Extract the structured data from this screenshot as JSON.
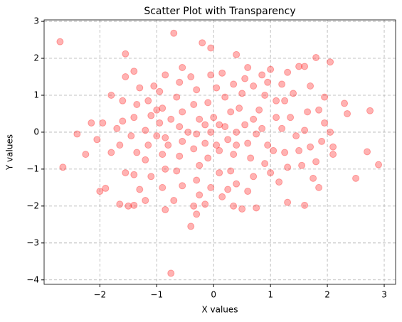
{
  "chart_data": {
    "type": "scatter",
    "title": "Scatter Plot with Transparency",
    "x_label": "X values",
    "y_label": "Y values",
    "color": "#ff0000",
    "alpha": 0.3,
    "grid": true,
    "xlim": [
      -2.98,
      3.2
    ],
    "ylim": [
      -4.12,
      3.04
    ],
    "xticks": [
      {
        "value": -2,
        "label": "−2"
      },
      {
        "value": -1,
        "label": "−1"
      },
      0,
      1,
      2,
      3
    ],
    "yticks": [
      {
        "value": -4,
        "label": "−4"
      },
      {
        "value": -3,
        "label": "−3"
      },
      {
        "value": -2,
        "label": "−2"
      },
      {
        "value": -1,
        "label": "−1"
      },
      0,
      1,
      2,
      3
    ],
    "x": [
      -2.7,
      -2.65,
      -0.7,
      -0.75,
      2.9,
      2.75,
      2.7,
      2.5,
      2.05,
      -0.4,
      1.8,
      -1.55,
      0.4,
      -0.2,
      -0.05,
      2.3,
      2.35,
      -2.4,
      -2.25,
      -2.15,
      -2.0,
      -1.9,
      -1.8,
      -1.8,
      1.3,
      1.6,
      0.35,
      0.5,
      0.75,
      -0.3,
      -0.35,
      -1.5,
      -1.65,
      -1.4,
      -1.2,
      -0.85,
      2.1,
      2.1,
      2.05,
      1.95,
      1.9,
      1.8,
      1.75,
      1.7,
      1.6,
      1.5,
      1.3,
      1.2,
      1.1,
      1.25,
      1.35,
      1.45,
      1.5,
      1.3,
      1.15,
      1.0,
      0.9,
      0.95,
      0.85,
      0.8,
      0.9,
      0.85,
      0.6,
      0.55,
      0.5,
      0.45,
      0.55,
      0.6,
      0.65,
      0.7,
      0.6,
      0.4,
      0.3,
      0.35,
      0.25,
      0.2,
      0.3,
      0.2,
      0.35,
      0.15,
      -0.05,
      0.05,
      -0.1,
      0.0,
      -0.05,
      0.05,
      -0.1,
      0.1,
      -0.05,
      0.15,
      -0.25,
      -0.3,
      -0.25,
      -0.35,
      -0.3,
      -0.25,
      -0.35,
      -0.3,
      -0.4,
      -0.55,
      -0.6,
      -0.65,
      -0.55,
      -0.6,
      -0.55,
      -0.6,
      -0.65,
      -0.55,
      -0.7,
      -0.9,
      -0.85,
      -0.9,
      -0.85,
      -0.95,
      -0.9,
      -0.95,
      -0.85,
      -1.05,
      -1.15,
      -1.1,
      -1.2,
      -1.15,
      -1.2,
      -1.1,
      -1.3,
      -1.4,
      -1.35,
      -1.45,
      -1.4,
      -1.35,
      -1.3,
      -1.4,
      -1.55,
      -1.6,
      -1.6,
      -1.65,
      -1.55,
      -1.7,
      1.85,
      1.65,
      1.6,
      1.55,
      1.7,
      1.95,
      1.4,
      1.2,
      1.05,
      1.1,
      0.95,
      0.7,
      0.7,
      0.75,
      0.4,
      0.1,
      -0.15,
      -0.15,
      0.1,
      0.4,
      -0.45,
      -0.75,
      -0.8,
      -1.0,
      -1.0,
      0.25,
      -0.15,
      1.25,
      1.85,
      -2.05,
      -1.95,
      1.0
    ],
    "values": [
      2.45,
      -0.95,
      2.68,
      -3.82,
      -0.88,
      0.58,
      -0.53,
      -1.25,
      1.9,
      -2.55,
      2.02,
      2.12,
      2.1,
      2.42,
      2.28,
      0.78,
      0.5,
      -0.05,
      -0.6,
      0.25,
      -1.6,
      -1.52,
      -0.55,
      1.0,
      -1.9,
      -1.98,
      -2.0,
      -2.08,
      -2.05,
      -2.22,
      -2.0,
      -2.0,
      -1.95,
      -1.98,
      -1.85,
      -2.1,
      -0.6,
      -0.4,
      0.0,
      0.25,
      -0.25,
      -0.8,
      -1.25,
      1.25,
      1.78,
      1.78,
      1.62,
      1.3,
      0.85,
      0.85,
      0.4,
      -0.1,
      -0.5,
      -0.95,
      -1.35,
      -1.1,
      -0.85,
      -0.35,
      0.1,
      0.6,
      1.0,
      1.55,
      1.75,
      1.45,
      1.05,
      0.65,
      0.2,
      -0.3,
      -0.7,
      -1.2,
      -1.6,
      -1.4,
      -1.05,
      -0.6,
      -0.2,
      0.15,
      0.55,
      0.95,
      1.3,
      1.6,
      1.55,
      1.2,
      0.8,
      0.4,
      0.0,
      -0.35,
      -0.7,
      -1.1,
      -1.5,
      -1.75,
      -1.7,
      -1.3,
      -0.9,
      -0.45,
      -0.05,
      0.35,
      0.75,
      1.15,
      1.5,
      1.75,
      1.35,
      0.95,
      0.55,
      0.15,
      -0.25,
      -0.65,
      -1.05,
      -1.45,
      -1.85,
      -1.5,
      -1.0,
      -0.6,
      -0.15,
      0.25,
      0.65,
      1.1,
      1.55,
      1.25,
      0.85,
      0.45,
      0.05,
      -0.35,
      -0.75,
      -1.2,
      -1.55,
      -1.15,
      -0.55,
      -0.1,
      0.4,
      0.75,
      1.2,
      1.65,
      1.5,
      0.85,
      0.3,
      -0.35,
      -1.1,
      0.1,
      0.6,
      0.55,
      0.05,
      -0.9,
      -0.4,
      0.95,
      1.05,
      0.1,
      -0.5,
      0.4,
      1.35,
      1.25,
      0.35,
      -0.05,
      0.0,
      0.2,
      0.2,
      -0.3,
      -0.5,
      -0.35,
      0.0,
      0.35,
      -0.35,
      -0.1,
      0.6,
      -1.55,
      -1.95,
      -0.55,
      -1.5,
      -0.2,
      0.25,
      1.7
    ]
  }
}
